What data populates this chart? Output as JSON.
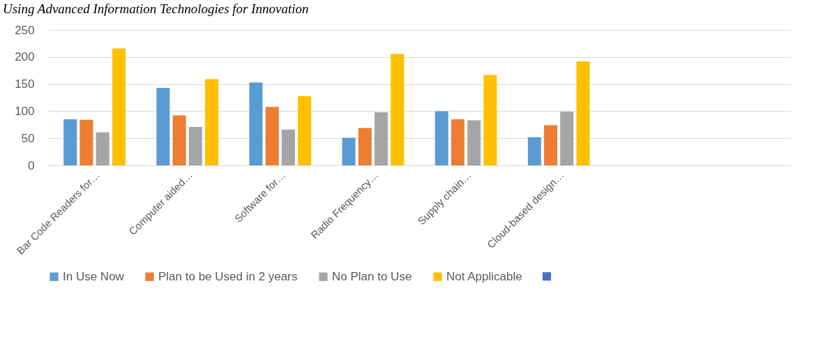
{
  "chart_data": {
    "type": "bar",
    "title": "Using Advanced Information Technologies for Innovation",
    "categories": [
      "Bar Code Readers for…",
      "Computer aided…",
      "Software for…",
      "Radio Frequency…",
      "Supply chain…",
      "Cloud-based design…",
      null,
      null
    ],
    "series": [
      {
        "name": "In Use Now",
        "color": "#5b9bd5",
        "values": [
          85,
          143,
          153,
          51,
          100,
          52,
          null,
          null
        ]
      },
      {
        "name": "Plan to be Used in 2 years",
        "color": "#ed7d31",
        "values": [
          84,
          92,
          108,
          69,
          85,
          74,
          null,
          null
        ]
      },
      {
        "name": "No Plan to Use",
        "color": "#a5a5a5",
        "values": [
          61,
          71,
          66,
          98,
          83,
          99,
          null,
          null
        ]
      },
      {
        "name": "Not Applicable",
        "color": "#ffc000",
        "values": [
          216,
          159,
          128,
          206,
          167,
          192,
          null,
          null
        ]
      }
    ],
    "ylim": [
      0,
      250
    ],
    "yticks": [
      0,
      50,
      100,
      150,
      200,
      250
    ],
    "grid": "y",
    "legend": "bottom"
  }
}
